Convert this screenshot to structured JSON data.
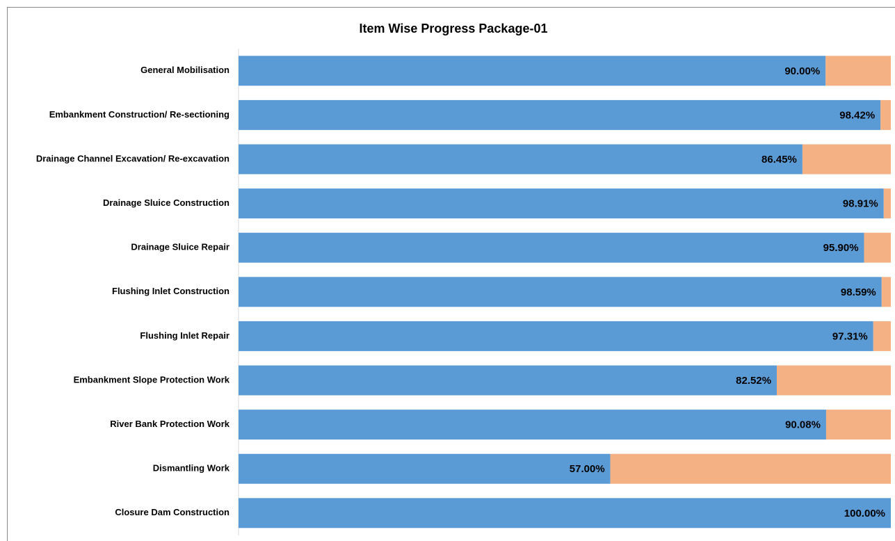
{
  "chart_data": {
    "type": "stacked_barh",
    "title": "Item Wise Progress Package-01",
    "categories": [
      "General Mobilisation",
      "Embankment Construction/ Re-sectioning",
      "Drainage Channel Excavation/ Re-excavation",
      "Drainage Sluice Construction",
      "Drainage Sluice Repair",
      "Flushing Inlet Construction",
      "Flushing Inlet Repair",
      "Embankment Slope Protection Work",
      "River Bank Protection Work",
      "Dismantling Work",
      "Closure Dam Construction"
    ],
    "series": [
      {
        "color": "#5b9bd5",
        "values": [
          90,
          98.42,
          86.45,
          98.91,
          95.9,
          98.59,
          97.31,
          82.52,
          90.08,
          57,
          100
        ],
        "value_labels": [
          "90.00%",
          "98.42%",
          "86.45%",
          "98.91%",
          "95.90%",
          "98.59%",
          "97.31%",
          "82.52%",
          "90.08%",
          "57.00%",
          "100.00%"
        ]
      },
      {
        "color": "#f4b183",
        "values": [
          10,
          1.58,
          13.55,
          1.09,
          4.1,
          1.41,
          2.69,
          17.48,
          9.92,
          43,
          0
        ]
      }
    ],
    "xlim": [
      0,
      100
    ]
  }
}
